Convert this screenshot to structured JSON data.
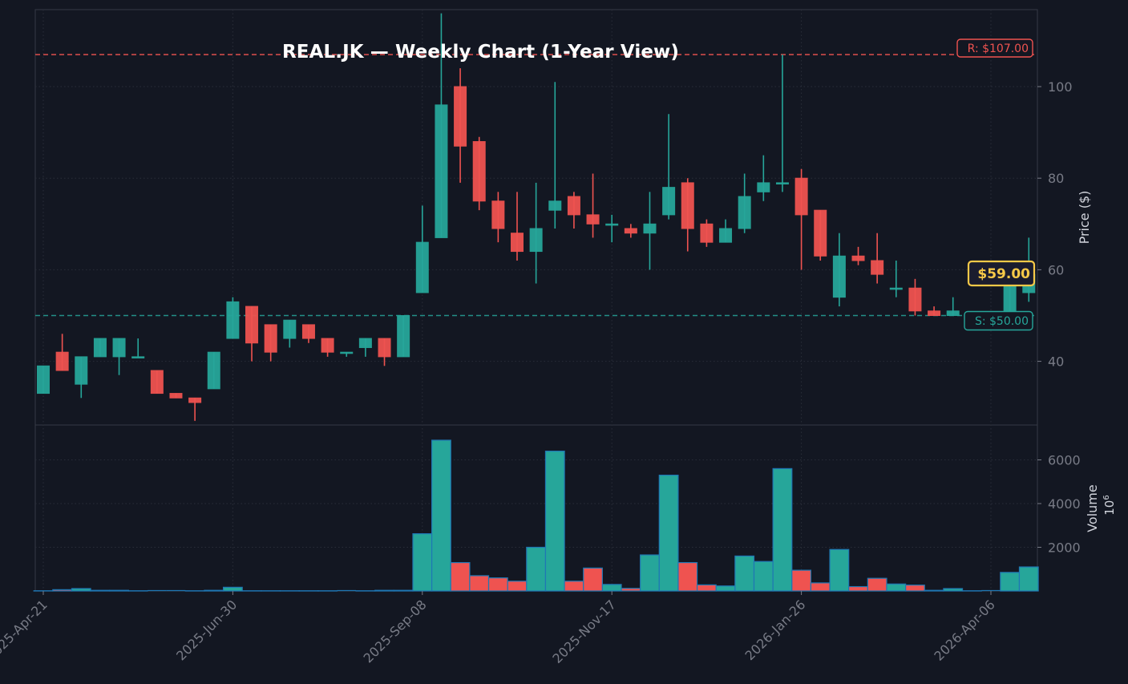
{
  "colors": {
    "background": "#131722",
    "grid": "#2a2e39",
    "axis": "#363a45",
    "tick_text": "#787b86",
    "label_text": "#d1d4dc",
    "up": "#26a69a",
    "down": "#ef5350",
    "resistance": "#ef5350",
    "support": "#26a69a",
    "current": "#f7c948",
    "volume_edge": "#1f77b4"
  },
  "chart_data": {
    "type": "candlestick",
    "title": "REAL.JK — Weekly Chart (1-Year View)",
    "xlabel": "",
    "ylabel": "Price ($)",
    "volume_label": "Volume",
    "volume_multiplier_label": "10^6",
    "x_tick_labels": [
      "2025-Apr-21",
      "2025-Jun-30",
      "2025-Sep-08",
      "2025-Nov-17",
      "2026-Jan-26",
      "2026-Apr-06"
    ],
    "x_tick_indices": [
      0,
      10,
      20,
      30,
      40,
      50
    ],
    "y_ticks": [
      40,
      60,
      80,
      100
    ],
    "ylim": [
      25,
      118
    ],
    "volume_ticks": [
      2000,
      4000,
      6000
    ],
    "volume_ylim": [
      0,
      7550
    ],
    "grid": true,
    "resistance": {
      "value": 107,
      "label": "R: $107.00"
    },
    "support": {
      "value": 50,
      "label": "S: $50.00"
    },
    "current_price": {
      "value": 59,
      "label": "$59.00"
    },
    "candles": [
      {
        "i": 0,
        "o": 33,
        "h": 39,
        "l": 33,
        "c": 39,
        "v": 10
      },
      {
        "i": 1,
        "o": 42,
        "h": 46,
        "l": 38,
        "c": 38,
        "v": 60
      },
      {
        "i": 2,
        "o": 35,
        "h": 41,
        "l": 32,
        "c": 41,
        "v": 110
      },
      {
        "i": 3,
        "o": 41,
        "h": 45,
        "l": 41,
        "c": 45,
        "v": 30
      },
      {
        "i": 4,
        "o": 41,
        "h": 45,
        "l": 37,
        "c": 45,
        "v": 30
      },
      {
        "i": 5,
        "o": 41,
        "h": 45,
        "l": 41,
        "c": 41,
        "v": 10
      },
      {
        "i": 6,
        "o": 38,
        "h": 38,
        "l": 33,
        "c": 33,
        "v": 0
      },
      {
        "i": 7,
        "o": 33,
        "h": 33,
        "l": 32,
        "c": 32,
        "v": 0
      },
      {
        "i": 8,
        "o": 32,
        "h": 32,
        "l": 27,
        "c": 31,
        "v": 10
      },
      {
        "i": 9,
        "o": 34,
        "h": 42,
        "l": 34,
        "c": 42,
        "v": 30
      },
      {
        "i": 10,
        "o": 45,
        "h": 54,
        "l": 45,
        "c": 53,
        "v": 170
      },
      {
        "i": 11,
        "o": 52,
        "h": 52,
        "l": 40,
        "c": 44,
        "v": 10
      },
      {
        "i": 12,
        "o": 48,
        "h": 48,
        "l": 40,
        "c": 42,
        "v": 10
      },
      {
        "i": 13,
        "o": 45,
        "h": 49,
        "l": 43,
        "c": 49,
        "v": 10
      },
      {
        "i": 14,
        "o": 48,
        "h": 48,
        "l": 44,
        "c": 45,
        "v": 10
      },
      {
        "i": 15,
        "o": 45,
        "h": 45,
        "l": 41,
        "c": 42,
        "v": 10
      },
      {
        "i": 16,
        "o": 42,
        "h": 42,
        "l": 41,
        "c": 42,
        "v": 0
      },
      {
        "i": 17,
        "o": 43,
        "h": 45,
        "l": 41,
        "c": 45,
        "v": 10
      },
      {
        "i": 18,
        "o": 45,
        "h": 45,
        "l": 39,
        "c": 41,
        "v": 30
      },
      {
        "i": 19,
        "o": 41,
        "h": 50,
        "l": 41,
        "c": 50,
        "v": 30
      },
      {
        "i": 20,
        "o": 55,
        "h": 74,
        "l": 55,
        "c": 66,
        "v": 2620
      },
      {
        "i": 21,
        "o": 67,
        "h": 116,
        "l": 67,
        "c": 96,
        "v": 6900
      },
      {
        "i": 22,
        "o": 100,
        "h": 104,
        "l": 79,
        "c": 87,
        "v": 1300
      },
      {
        "i": 23,
        "o": 88,
        "h": 89,
        "l": 73,
        "c": 75,
        "v": 700
      },
      {
        "i": 24,
        "o": 75,
        "h": 77,
        "l": 66,
        "c": 69,
        "v": 600
      },
      {
        "i": 25,
        "o": 68,
        "h": 77,
        "l": 62,
        "c": 64,
        "v": 450
      },
      {
        "i": 26,
        "o": 64,
        "h": 79,
        "l": 57,
        "c": 69,
        "v": 2000
      },
      {
        "i": 27,
        "o": 73,
        "h": 101,
        "l": 69,
        "c": 75,
        "v": 6400
      },
      {
        "i": 28,
        "o": 76,
        "h": 77,
        "l": 69,
        "c": 72,
        "v": 450
      },
      {
        "i": 29,
        "o": 72,
        "h": 81,
        "l": 67,
        "c": 70,
        "v": 1050
      },
      {
        "i": 30,
        "o": 70,
        "h": 72,
        "l": 66,
        "c": 70,
        "v": 300
      },
      {
        "i": 31,
        "o": 69,
        "h": 70,
        "l": 67,
        "c": 68,
        "v": 120
      },
      {
        "i": 32,
        "o": 68,
        "h": 77,
        "l": 60,
        "c": 70,
        "v": 1650
      },
      {
        "i": 33,
        "o": 72,
        "h": 94,
        "l": 71,
        "c": 78,
        "v": 5300
      },
      {
        "i": 34,
        "o": 79,
        "h": 80,
        "l": 64,
        "c": 69,
        "v": 1300
      },
      {
        "i": 35,
        "o": 70,
        "h": 71,
        "l": 65,
        "c": 66,
        "v": 280
      },
      {
        "i": 36,
        "o": 66,
        "h": 71,
        "l": 66,
        "c": 69,
        "v": 230
      },
      {
        "i": 37,
        "o": 69,
        "h": 81,
        "l": 68,
        "c": 76,
        "v": 1600
      },
      {
        "i": 38,
        "o": 77,
        "h": 85,
        "l": 75,
        "c": 79,
        "v": 1350
      },
      {
        "i": 39,
        "o": 79,
        "h": 107,
        "l": 77,
        "c": 79,
        "v": 5600
      },
      {
        "i": 40,
        "o": 80,
        "h": 82,
        "l": 60,
        "c": 72,
        "v": 950
      },
      {
        "i": 41,
        "o": 73,
        "h": 73,
        "l": 62,
        "c": 63,
        "v": 370
      },
      {
        "i": 42,
        "o": 54,
        "h": 68,
        "l": 52,
        "c": 63,
        "v": 1900
      },
      {
        "i": 43,
        "o": 63,
        "h": 65,
        "l": 61,
        "c": 62,
        "v": 200
      },
      {
        "i": 44,
        "o": 62,
        "h": 68,
        "l": 57,
        "c": 59,
        "v": 580
      },
      {
        "i": 45,
        "o": 56,
        "h": 62,
        "l": 54,
        "c": 56,
        "v": 320
      },
      {
        "i": 46,
        "o": 56,
        "h": 58,
        "l": 50,
        "c": 51,
        "v": 270
      },
      {
        "i": 47,
        "o": 51,
        "h": 52,
        "l": 50,
        "c": 50,
        "v": 30
      },
      {
        "i": 48,
        "o": 50,
        "h": 54,
        "l": 50,
        "c": 51,
        "v": 110
      },
      {
        "i": 49,
        "o": null,
        "h": null,
        "l": null,
        "c": null,
        "v": 10
      },
      {
        "i": 50,
        "o": null,
        "h": null,
        "l": null,
        "c": null,
        "v": 0
      },
      {
        "i": 51,
        "o": 50,
        "h": 61,
        "l": 50,
        "c": 61,
        "v": 850
      },
      {
        "i": 52,
        "o": 55,
        "h": 67,
        "l": 53,
        "c": 59,
        "v": 1100
      }
    ]
  }
}
